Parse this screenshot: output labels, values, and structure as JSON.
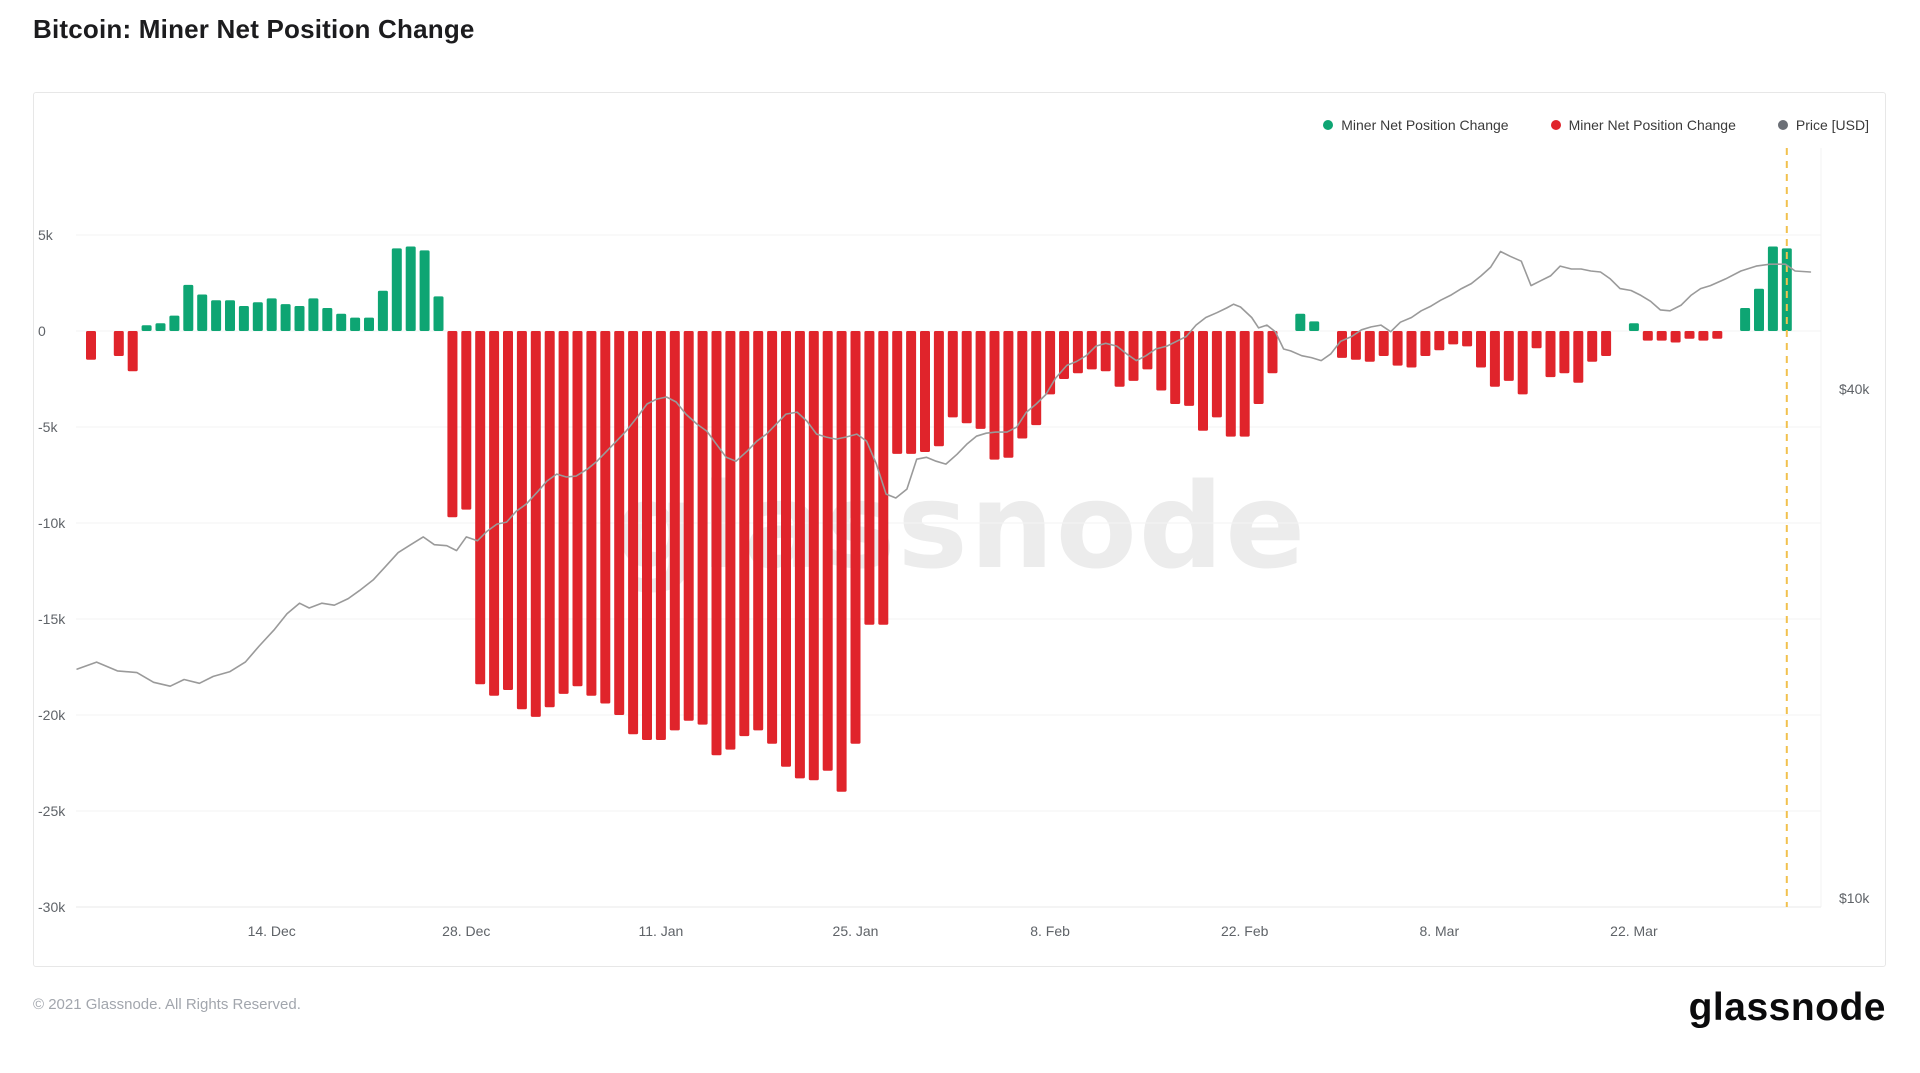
{
  "page": {
    "title": "Bitcoin: Miner Net Position Change",
    "footer_copyright": "© 2021 Glassnode. All Rights Reserved.",
    "brand_logo": "glassnode"
  },
  "legend": [
    {
      "label": "Miner Net Position Change",
      "color": "#0ea573",
      "series": "positive-bars"
    },
    {
      "label": "Miner Net Position Change",
      "color": "#e0242b",
      "series": "negative-bars"
    },
    {
      "label": "Price [USD]",
      "color": "#6b6f76",
      "series": "price-line"
    }
  ],
  "chart_data": {
    "type": "bar+line",
    "title": "Bitcoin: Miner Net Position Change",
    "watermark": "glassnode",
    "grid": "on",
    "legend_position": "top-right",
    "left_axis": {
      "unit": "BTC",
      "ticks": [
        "5k",
        "0",
        "-5k",
        "-10k",
        "-15k",
        "-20k",
        "-25k",
        "-30k"
      ],
      "tick_values": [
        5000,
        0,
        -5000,
        -10000,
        -15000,
        -20000,
        -25000,
        -30000
      ],
      "range": [
        -30000,
        5000
      ]
    },
    "right_axis": {
      "unit": "USD",
      "scale": "log",
      "ticks": [
        "$40k",
        "$10k"
      ],
      "tick_values": [
        40000,
        10000
      ]
    },
    "x_axis": {
      "start_date": "2020-12-01",
      "ticks": [
        "14. Dec",
        "28. Dec",
        "11. Jan",
        "25. Jan",
        "8. Feb",
        "22. Feb",
        "8. Mar",
        "22. Mar"
      ],
      "tick_day_indices": [
        13,
        27,
        41,
        55,
        69,
        83,
        97,
        111
      ]
    },
    "bars": {
      "name": "Miner Net Position Change",
      "values": [
        -1500,
        0,
        -1300,
        -2100,
        300,
        400,
        800,
        2400,
        1900,
        1600,
        1600,
        1300,
        1500,
        1700,
        1400,
        1300,
        1700,
        1200,
        900,
        700,
        700,
        2100,
        4300,
        4400,
        4200,
        1800,
        -9700,
        -9300,
        -18400,
        -19000,
        -18700,
        -19700,
        -20100,
        -19600,
        -18900,
        -18500,
        -19000,
        -19400,
        -20000,
        -21000,
        -21300,
        -21300,
        -20800,
        -20300,
        -20500,
        -22100,
        -21800,
        -21100,
        -20800,
        -21500,
        -22700,
        -23300,
        -23400,
        -22900,
        -24000,
        -21500,
        -15300,
        -15300,
        -6400,
        -6400,
        -6300,
        -6000,
        -4500,
        -4800,
        -5100,
        -6700,
        -6600,
        -5600,
        -4900,
        -3300,
        -2500,
        -2200,
        -2000,
        -2100,
        -2900,
        -2600,
        -2000,
        -3100,
        -3800,
        -3900,
        -5200,
        -4500,
        -5500,
        -5500,
        -3800,
        -2200,
        0,
        900,
        500,
        0,
        -1400,
        -1500,
        -1600,
        -1300,
        -1800,
        -1900,
        -1300,
        -1000,
        -700,
        -800,
        -1900,
        -2900,
        -2600,
        -3300,
        -900,
        -2400,
        -2200,
        -2700,
        -1600,
        -1300,
        0,
        400,
        -500,
        -500,
        -600,
        -400,
        -500,
        -400,
        0,
        1200,
        2200,
        4400,
        4300
      ]
    },
    "price_line": {
      "name": "Price [USD]",
      "points_day_usd": [
        [
          -1.0,
          18660
        ],
        [
          0.4,
          19020
        ],
        [
          1.9,
          18570
        ],
        [
          3.3,
          18480
        ],
        [
          4.5,
          18000
        ],
        [
          5.7,
          17810
        ],
        [
          6.7,
          18140
        ],
        [
          7.8,
          17950
        ],
        [
          8.8,
          18290
        ],
        [
          10.0,
          18530
        ],
        [
          11.1,
          19020
        ],
        [
          12.1,
          19870
        ],
        [
          13.2,
          20790
        ],
        [
          14.1,
          21700
        ],
        [
          15.0,
          22330
        ],
        [
          15.7,
          22040
        ],
        [
          16.6,
          22330
        ],
        [
          17.5,
          22210
        ],
        [
          18.5,
          22610
        ],
        [
          19.3,
          23100
        ],
        [
          20.3,
          23790
        ],
        [
          21.2,
          24690
        ],
        [
          22.1,
          25630
        ],
        [
          23.0,
          26190
        ],
        [
          23.9,
          26750
        ],
        [
          24.7,
          26190
        ],
        [
          25.6,
          26120
        ],
        [
          26.3,
          25770
        ],
        [
          27.0,
          26750
        ],
        [
          27.8,
          26470
        ],
        [
          28.5,
          27180
        ],
        [
          29.2,
          27700
        ],
        [
          29.9,
          27850
        ],
        [
          30.6,
          28690
        ],
        [
          31.3,
          29240
        ],
        [
          32.1,
          30220
        ],
        [
          32.8,
          31140
        ],
        [
          33.5,
          31740
        ],
        [
          34.2,
          31490
        ],
        [
          34.9,
          31570
        ],
        [
          35.7,
          32170
        ],
        [
          36.4,
          32880
        ],
        [
          37.1,
          33790
        ],
        [
          37.8,
          34720
        ],
        [
          38.5,
          35690
        ],
        [
          39.3,
          37080
        ],
        [
          40.0,
          38420
        ],
        [
          40.7,
          38940
        ],
        [
          41.4,
          39160
        ],
        [
          42.1,
          38630
        ],
        [
          42.8,
          37380
        ],
        [
          43.6,
          36380
        ],
        [
          44.3,
          35690
        ],
        [
          45.0,
          34430
        ],
        [
          45.7,
          33230
        ],
        [
          46.4,
          32880
        ],
        [
          47.2,
          33790
        ],
        [
          47.9,
          34720
        ],
        [
          48.6,
          35400
        ],
        [
          49.3,
          36380
        ],
        [
          50.0,
          37380
        ],
        [
          50.8,
          37590
        ],
        [
          51.5,
          36680
        ],
        [
          52.2,
          35400
        ],
        [
          52.9,
          35110
        ],
        [
          53.6,
          34920
        ],
        [
          54.3,
          35110
        ],
        [
          55.1,
          35400
        ],
        [
          55.8,
          34720
        ],
        [
          56.5,
          32620
        ],
        [
          57.2,
          30060
        ],
        [
          57.9,
          29740
        ],
        [
          58.7,
          30470
        ],
        [
          59.4,
          33060
        ],
        [
          60.1,
          33230
        ],
        [
          60.8,
          32880
        ],
        [
          61.5,
          32620
        ],
        [
          62.3,
          33500
        ],
        [
          63.0,
          34430
        ],
        [
          63.7,
          35200
        ],
        [
          64.4,
          35490
        ],
        [
          65.1,
          35590
        ],
        [
          65.9,
          35590
        ],
        [
          66.6,
          36080
        ],
        [
          67.3,
          37590
        ],
        [
          68.0,
          38420
        ],
        [
          68.7,
          39430
        ],
        [
          69.4,
          41250
        ],
        [
          70.2,
          42690
        ],
        [
          70.9,
          43140
        ],
        [
          71.6,
          43830
        ],
        [
          72.3,
          44990
        ],
        [
          73.0,
          45340
        ],
        [
          73.8,
          44990
        ],
        [
          74.5,
          44060
        ],
        [
          75.2,
          43250
        ],
        [
          75.9,
          43830
        ],
        [
          76.6,
          44640
        ],
        [
          77.4,
          44990
        ],
        [
          78.1,
          45580
        ],
        [
          78.8,
          46180
        ],
        [
          79.5,
          47640
        ],
        [
          80.2,
          48640
        ],
        [
          81.0,
          49280
        ],
        [
          81.7,
          49920
        ],
        [
          82.2,
          50440
        ],
        [
          82.7,
          50050
        ],
        [
          83.5,
          48640
        ],
        [
          84.0,
          47280
        ],
        [
          84.6,
          47640
        ],
        [
          85.2,
          46790
        ],
        [
          85.8,
          44640
        ],
        [
          86.3,
          44410
        ],
        [
          87.1,
          43830
        ],
        [
          87.8,
          43600
        ],
        [
          88.5,
          43250
        ],
        [
          89.2,
          44060
        ],
        [
          89.9,
          45580
        ],
        [
          90.7,
          46180
        ],
        [
          91.4,
          47040
        ],
        [
          92.1,
          47410
        ],
        [
          92.8,
          47640
        ],
        [
          93.5,
          46790
        ],
        [
          94.2,
          48020
        ],
        [
          95.0,
          48640
        ],
        [
          95.7,
          49530
        ],
        [
          96.4,
          50180
        ],
        [
          97.1,
          50980
        ],
        [
          97.8,
          51660
        ],
        [
          98.6,
          52630
        ],
        [
          99.3,
          53340
        ],
        [
          100.0,
          54480
        ],
        [
          100.7,
          55800
        ],
        [
          101.4,
          58230
        ],
        [
          102.1,
          57460
        ],
        [
          102.9,
          56700
        ],
        [
          103.6,
          53060
        ],
        [
          104.3,
          53770
        ],
        [
          105.0,
          54480
        ],
        [
          105.7,
          55950
        ],
        [
          106.5,
          55510
        ],
        [
          107.2,
          55510
        ],
        [
          107.9,
          55210
        ],
        [
          108.6,
          55060
        ],
        [
          109.3,
          54040
        ],
        [
          110.0,
          52630
        ],
        [
          110.8,
          52350
        ],
        [
          111.5,
          51660
        ],
        [
          112.2,
          50840
        ],
        [
          112.9,
          49660
        ],
        [
          113.6,
          49530
        ],
        [
          114.4,
          50310
        ],
        [
          115.1,
          51660
        ],
        [
          115.8,
          52630
        ],
        [
          116.5,
          53060
        ],
        [
          117.6,
          54040
        ],
        [
          118.7,
          55210
        ],
        [
          119.8,
          55950
        ],
        [
          120.8,
          56240
        ],
        [
          121.9,
          56240
        ],
        [
          122.6,
          55210
        ],
        [
          123.7,
          55060
        ]
      ]
    },
    "highlight_day_index": 122,
    "colors": {
      "positive": "#0ea573",
      "negative": "#e0242b",
      "price": "#9a9a9a",
      "highlight_line": "#f2c14e",
      "grid": "#f3f3f3",
      "axis_line": "#e8e8e8",
      "watermark": "#ececec"
    }
  }
}
